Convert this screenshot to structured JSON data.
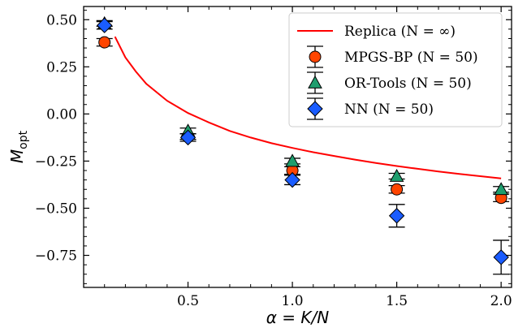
{
  "chart_data": {
    "type": "scatter",
    "xlabel": "α = K/N",
    "ylabel": "M_opt",
    "xlim": [
      0.0,
      2.05
    ],
    "ylim": [
      -0.92,
      0.57
    ],
    "x_ticks": [
      {
        "value": 0.5,
        "label": "0.5"
      },
      {
        "value": 1.0,
        "label": "1.0"
      },
      {
        "value": 1.5,
        "label": "1.5"
      },
      {
        "value": 2.0,
        "label": "2.0"
      }
    ],
    "y_ticks": [
      {
        "value": 0.5,
        "label": "0.50"
      },
      {
        "value": 0.25,
        "label": "0.25"
      },
      {
        "value": 0.0,
        "label": "0.00"
      },
      {
        "value": -0.25,
        "label": "−0.25"
      },
      {
        "value": -0.5,
        "label": "−0.50"
      },
      {
        "value": -0.75,
        "label": "−0.75"
      }
    ],
    "grid": false,
    "legend_position": "top-right",
    "series": [
      {
        "name": "Replica (N = ∞)",
        "kind": "line",
        "color": "#ff0000",
        "x": [
          0.15,
          0.2,
          0.25,
          0.3,
          0.4,
          0.5,
          0.6,
          0.7,
          0.8,
          0.9,
          1.0,
          1.1,
          1.2,
          1.3,
          1.4,
          1.5,
          1.6,
          1.7,
          1.8,
          1.9,
          2.0
        ],
        "y": [
          0.41,
          0.3,
          0.225,
          0.16,
          0.07,
          0.005,
          -0.045,
          -0.09,
          -0.125,
          -0.155,
          -0.18,
          -0.203,
          -0.223,
          -0.242,
          -0.26,
          -0.276,
          -0.291,
          -0.305,
          -0.318,
          -0.33,
          -0.342
        ]
      },
      {
        "name": "MPGS-BP (N = 50)",
        "kind": "points",
        "marker": "circle",
        "color": "#ff4500",
        "x": [
          0.1,
          0.5,
          1.0,
          1.5,
          2.0
        ],
        "y": [
          0.38,
          -0.12,
          -0.3,
          -0.4,
          -0.445
        ],
        "err": [
          0.02,
          0.015,
          0.02,
          0.02,
          0.02
        ]
      },
      {
        "name": "OR-Tools (N = 50)",
        "kind": "points",
        "marker": "triangle",
        "color": "#1f9e6e",
        "x": [
          0.1,
          0.5,
          1.0,
          1.5,
          2.0
        ],
        "y": [
          0.48,
          -0.09,
          -0.25,
          -0.33,
          -0.4
        ],
        "err": [
          0.015,
          0.015,
          0.015,
          0.015,
          0.015
        ]
      },
      {
        "name": "NN (N = 50)",
        "kind": "points",
        "marker": "diamond",
        "color": "#1a5cff",
        "x": [
          0.1,
          0.5,
          1.0,
          1.5,
          2.0
        ],
        "y": [
          0.47,
          -0.125,
          -0.35,
          -0.54,
          -0.76
        ],
        "err": [
          0.02,
          0.02,
          0.025,
          0.06,
          0.09
        ]
      }
    ]
  }
}
